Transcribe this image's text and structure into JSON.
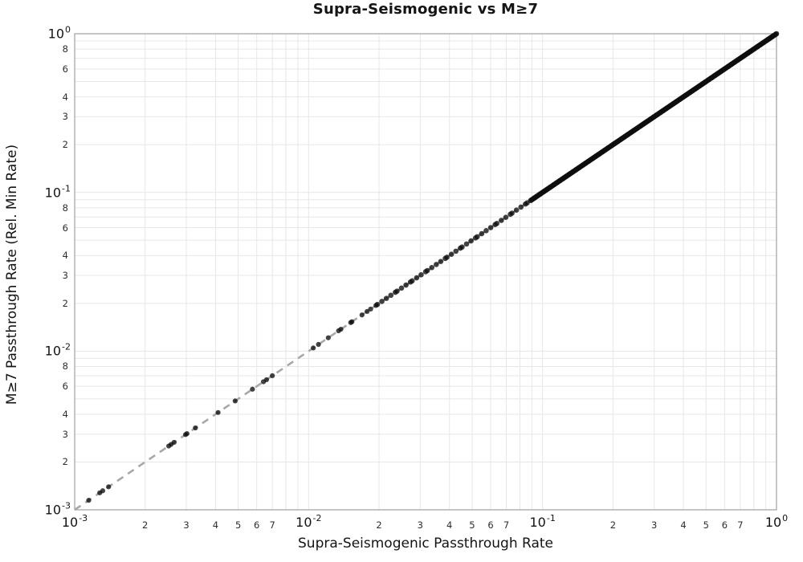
{
  "chart_data": {
    "type": "scatter",
    "title": "Supra-Seismogenic vs M≥7",
    "xlabel": "Supra-Seismogenic Passthrough Rate",
    "ylabel": "M≥7 Passthrough Rate (Rel. Min Rate)",
    "x_scale": "log",
    "y_scale": "log",
    "xlim_log10": [
      -3,
      0
    ],
    "ylim_log10": [
      -3,
      0
    ],
    "grid": true,
    "legend_position": "none",
    "relationship": "points lie on the identity line y = x",
    "identity_line": {
      "style": "dashed",
      "from_log10": -3,
      "to_log10": 0
    },
    "points_log10_x_sparse": [
      -2.94,
      -2.893,
      -2.88,
      -2.855,
      -2.598,
      -2.588,
      -2.575,
      -2.526,
      -2.52,
      -2.484,
      -2.387,
      -2.314,
      -2.24,
      -2.193,
      -2.18,
      -2.155,
      -1.98,
      -1.958,
      -1.916,
      -1.872,
      -1.862,
      -1.82,
      -1.815,
      -1.772,
      -1.75,
      -1.735,
      -1.712
    ],
    "dense_bands": [
      {
        "from_log10": -1.7,
        "to_log10": -1.06,
        "count": 40,
        "jitter_log10": 0.006
      },
      {
        "from_log10": -1.05,
        "to_log10": 0.0,
        "count": 330,
        "jitter_log10": 0.001
      }
    ],
    "x_major_ticks_exp": [
      -3,
      -2,
      -1,
      0
    ],
    "x_minor_tick_labels": [
      2,
      3,
      4,
      5,
      6,
      7
    ],
    "y_major_ticks_exp": [
      -3,
      -2,
      -1,
      0
    ],
    "y_minor_tick_labels": [
      2,
      3,
      4,
      6,
      8
    ],
    "minor_gridline_multipliers": [
      2,
      3,
      4,
      5,
      6,
      7,
      8,
      9
    ]
  },
  "colors": {
    "marker": "#0e0e0e",
    "marker_opacity": 0.78,
    "dashed_line": "#a8a8a8",
    "grid": "#e7e7e7",
    "spine": "#a0a0a0",
    "major_tick_text": "#141414",
    "minor_tick_text": "#2e2e2e"
  }
}
